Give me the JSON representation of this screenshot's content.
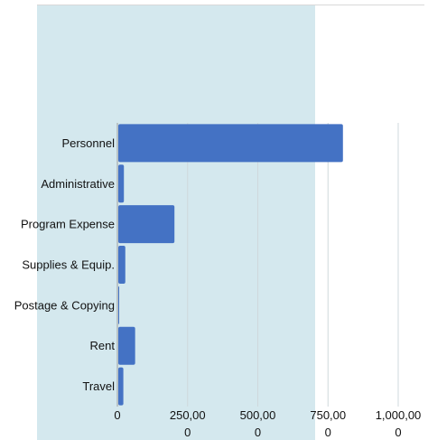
{
  "chart_data": {
    "type": "bar",
    "orientation": "horizontal",
    "title": "",
    "xlabel": "",
    "ylabel": "",
    "categories": [
      "Personnel",
      "Administrative",
      "Program Expense",
      "Supplies & Equip.",
      "Postage & Copying",
      "Rent",
      "Travel"
    ],
    "values": [
      800000,
      20000,
      200000,
      25000,
      3000,
      60000,
      18000
    ],
    "xlim": [
      0,
      1000000
    ],
    "ticks": [
      {
        "value": 0,
        "lines": [
          "0"
        ]
      },
      {
        "value": 250000,
        "lines": [
          "250,00",
          "0"
        ]
      },
      {
        "value": 500000,
        "lines": [
          "500,00",
          "0"
        ]
      },
      {
        "value": 750000,
        "lines": [
          "750,00",
          "0"
        ]
      },
      {
        "value": 1000000,
        "lines": [
          "1,000,00",
          "0"
        ]
      }
    ],
    "grid": true,
    "legend": "none",
    "colors": {
      "bar": "#4472c4",
      "highlight_band": "#d4e8ee",
      "gridline": "#cfd8dc",
      "axis": "#9e9e9e"
    }
  }
}
